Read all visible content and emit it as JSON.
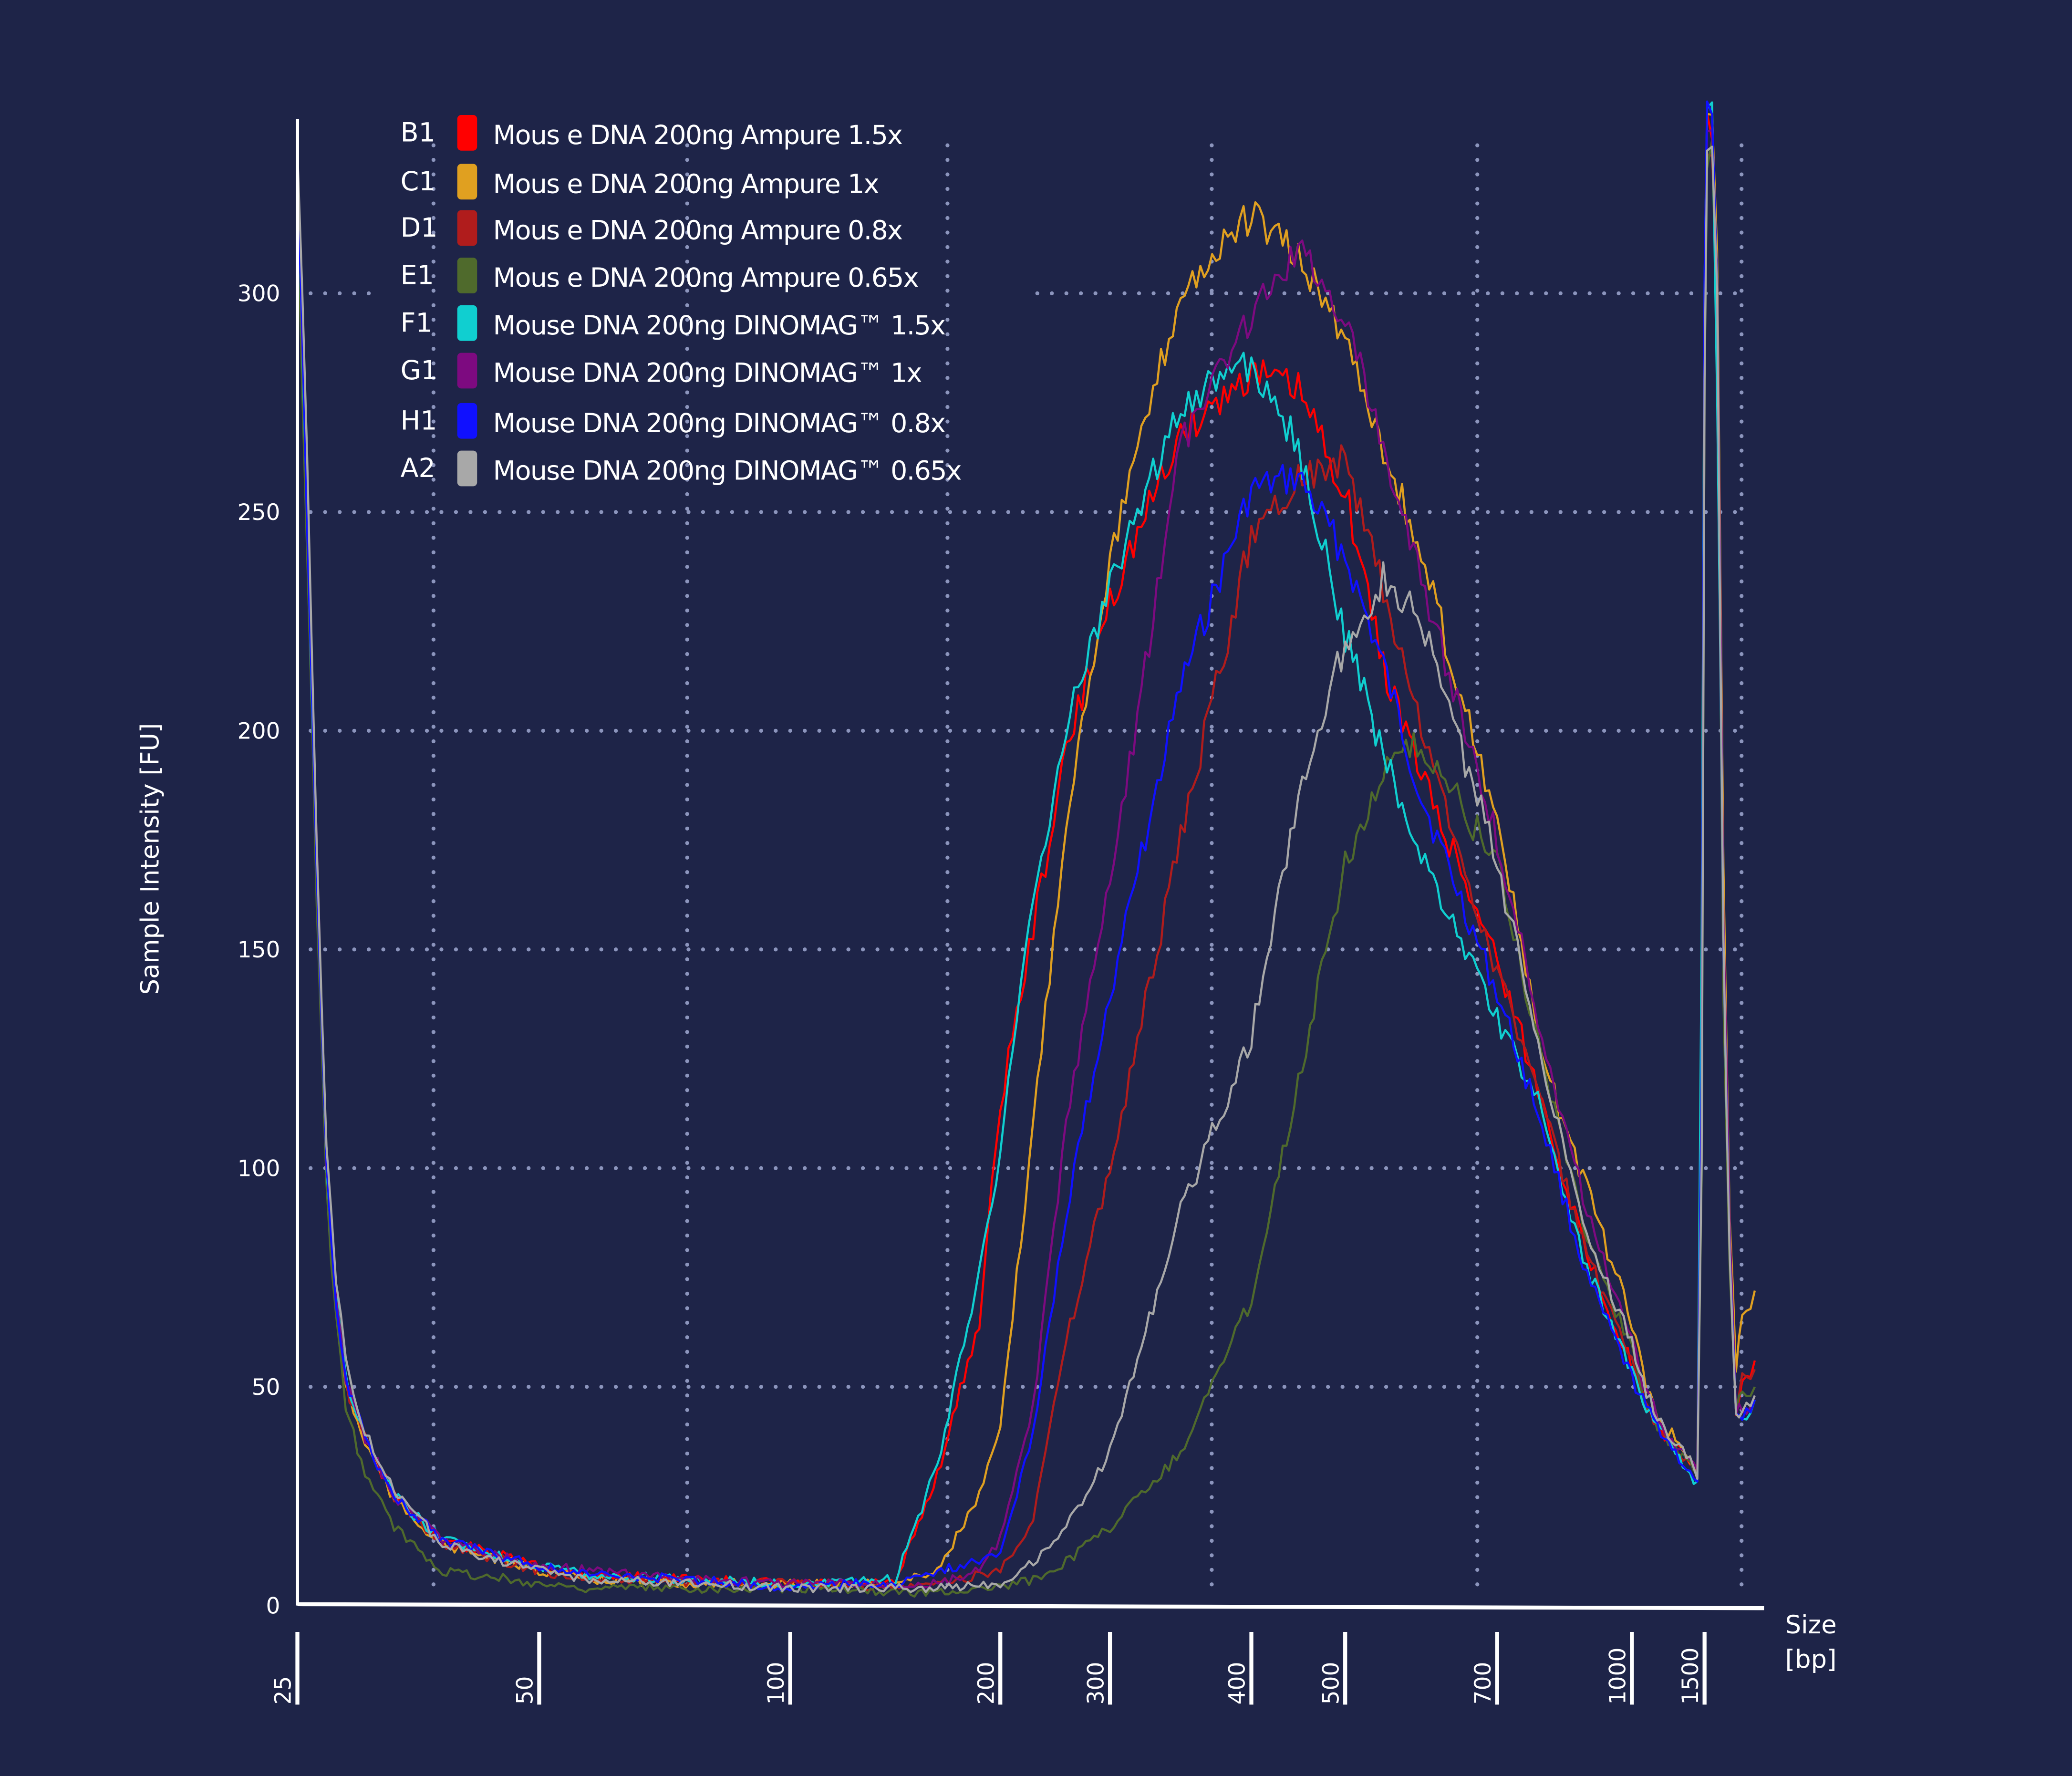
{
  "chart_data": {
    "type": "line",
    "title": "",
    "xlabel": [
      "Size",
      "[bp]"
    ],
    "ylabel": "Sample Intensity [FU]",
    "ylim": [
      0,
      340
    ],
    "yticks": [
      0,
      50,
      100,
      150,
      200,
      250,
      300
    ],
    "xticks": [
      25,
      50,
      100,
      200,
      300,
      400,
      500,
      700,
      1000,
      1500
    ],
    "xtick_labels": [
      "25",
      "50",
      "100",
      "200",
      "300",
      "400",
      "500",
      "700",
      "1000",
      "1500"
    ],
    "grid": true,
    "legend_position": "top-left",
    "x": [
      25,
      26,
      27,
      28,
      29,
      30,
      32,
      35,
      40,
      50,
      60,
      80,
      100,
      120,
      150,
      170,
      190,
      200,
      230,
      260,
      300,
      350,
      400,
      450,
      500,
      550,
      600,
      700,
      800,
      900,
      1000,
      1100,
      1200,
      1300,
      1400,
      1450,
      1480,
      1500,
      1520,
      1560,
      1600,
      1650,
      1700,
      1750,
      1800,
      1900
    ],
    "series": [
      {
        "id": "B1",
        "name": "Mous e DNA 200ng Ampure 1.5x",
        "color": "#ff0000",
        "values": [
          330,
          250,
          170,
          100,
          70,
          52,
          38,
          25,
          15,
          9,
          7,
          6,
          5,
          5,
          5,
          30,
          65,
          115,
          155,
          195,
          230,
          268,
          282,
          278,
          255,
          215,
          190,
          148,
          115,
          80,
          55,
          45,
          40,
          36,
          33,
          30,
          120,
          300,
          340,
          338,
          300,
          150,
          80,
          45,
          50,
          56
        ]
      },
      {
        "id": "C1",
        "name": "Mous e DNA 200ng Ampure 1x",
        "color": "#e0a020",
        "values": [
          325,
          245,
          165,
          98,
          68,
          50,
          37,
          24,
          14,
          8,
          6,
          5,
          5,
          5,
          5,
          8,
          25,
          40,
          110,
          180,
          240,
          300,
          318,
          308,
          290,
          265,
          240,
          180,
          125,
          95,
          65,
          50,
          42,
          38,
          33,
          30,
          110,
          290,
          338,
          340,
          310,
          170,
          90,
          55,
          65,
          72
        ]
      },
      {
        "id": "D1",
        "name": "Mous e DNA 200ng Ampure 0.8x",
        "color": "#b01c1c",
        "values": [
          320,
          245,
          168,
          100,
          70,
          50,
          38,
          25,
          14,
          8,
          6,
          5,
          5,
          5,
          4,
          5,
          7,
          8,
          20,
          60,
          100,
          175,
          245,
          258,
          262,
          232,
          200,
          145,
          115,
          80,
          55,
          45,
          40,
          36,
          33,
          30,
          110,
          290,
          335,
          335,
          300,
          150,
          80,
          45,
          52,
          54
        ]
      },
      {
        "id": "E1",
        "name": "Mous e DNA 200ng Ampure 0.65x",
        "color": "#4f6a2c",
        "values": [
          320,
          240,
          160,
          95,
          65,
          45,
          30,
          18,
          8,
          5,
          4,
          4,
          4,
          4,
          3,
          3,
          4,
          4,
          6,
          10,
          18,
          35,
          70,
          120,
          170,
          190,
          197,
          170,
          125,
          85,
          58,
          45,
          40,
          36,
          33,
          30,
          100,
          280,
          330,
          335,
          290,
          140,
          75,
          45,
          48,
          50
        ]
      },
      {
        "id": "F1",
        "name": "Mouse DNA 200ng DINOMAG™ 1.5x",
        "color": "#10cfd0",
        "values": [
          330,
          250,
          170,
          100,
          70,
          52,
          38,
          25,
          15,
          9,
          7,
          6,
          5,
          5,
          6,
          32,
          77,
          104,
          162,
          200,
          234,
          275,
          284,
          265,
          222,
          195,
          171,
          134,
          113,
          77,
          53,
          45,
          40,
          35,
          30,
          28,
          150,
          300,
          342,
          340,
          280,
          150,
          80,
          45,
          42,
          47
        ]
      },
      {
        "id": "G1",
        "name": "Mouse DNA 200ng DINOMAG™ 1x",
        "color": "#7d0a80",
        "values": [
          330,
          255,
          172,
          102,
          72,
          52,
          38,
          25,
          15,
          9,
          8,
          6,
          5,
          5,
          5,
          5,
          8,
          15,
          45,
          110,
          165,
          265,
          295,
          310,
          295,
          265,
          235,
          175,
          130,
          90,
          60,
          48,
          42,
          37,
          33,
          30,
          120,
          300,
          335,
          338,
          300,
          160,
          85,
          45,
          44,
          48
        ]
      },
      {
        "id": "H1",
        "name": "Mouse DNA 200ng DINOMAG™ 0.8x",
        "color": "#1010ff",
        "values": [
          328,
          250,
          170,
          100,
          70,
          52,
          38,
          25,
          15,
          9,
          7,
          6,
          4,
          5,
          5,
          8,
          10,
          12,
          40,
          90,
          140,
          210,
          255,
          258,
          240,
          215,
          185,
          140,
          110,
          75,
          52,
          45,
          40,
          35,
          30,
          27,
          120,
          300,
          340,
          338,
          300,
          150,
          80,
          45,
          42,
          47
        ]
      },
      {
        "id": "A2",
        "name": "Mouse DNA 200ng DINOMAG™ 0.65x",
        "color": "#a8a8a8",
        "values": [
          335,
          260,
          175,
          105,
          75,
          55,
          40,
          26,
          14,
          8,
          6,
          5,
          4,
          4,
          4,
          4,
          5,
          5,
          10,
          18,
          35,
          90,
          130,
          185,
          220,
          235,
          225,
          170,
          125,
          85,
          60,
          48,
          42,
          37,
          33,
          30,
          100,
          280,
          335,
          335,
          300,
          150,
          80,
          45,
          44,
          48
        ]
      }
    ]
  }
}
